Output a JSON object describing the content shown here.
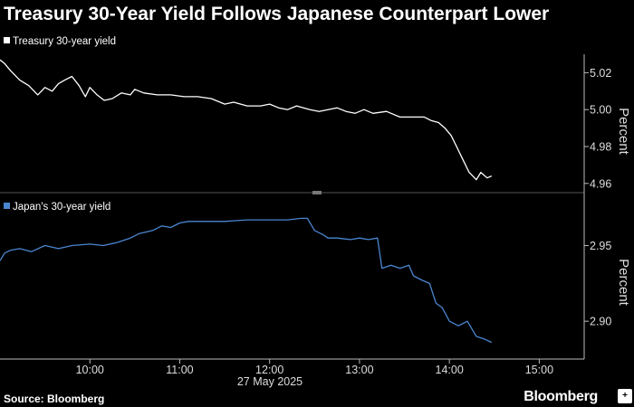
{
  "header": {
    "title": "Treasury 30-Year Yield Follows Japanese Counterpart Lower"
  },
  "footer": {
    "source": "Source: Bloomberg",
    "brand": "Bloomberg",
    "brand_icon": "bloomberg-plus-icon"
  },
  "colors": {
    "background": "#000000",
    "series1": "#ffffff",
    "series2": "#4a86d0",
    "axis": "#bbbbbb"
  },
  "chart_data": [
    {
      "type": "line",
      "ylabel": "Percent",
      "ylim": [
        4.955,
        5.03
      ],
      "yticks": [
        4.96,
        4.98,
        5.0,
        5.02
      ],
      "ytick_labels": [
        "4.96",
        "4.98",
        "5.00",
        "5.02"
      ],
      "legend": "top-left",
      "grid": false,
      "series": [
        {
          "name": "Treasury 30-year yield",
          "x": [
            9.0,
            9.05,
            9.12,
            9.22,
            9.32,
            9.42,
            9.5,
            9.58,
            9.65,
            9.72,
            9.8,
            9.88,
            9.95,
            10.0,
            10.08,
            10.16,
            10.25,
            10.35,
            10.45,
            10.5,
            10.6,
            10.75,
            10.9,
            11.05,
            11.2,
            11.35,
            11.5,
            11.6,
            11.75,
            11.9,
            12.0,
            12.1,
            12.2,
            12.3,
            12.45,
            12.55,
            12.65,
            12.75,
            12.85,
            12.95,
            13.05,
            13.15,
            13.3,
            13.45,
            13.55,
            13.65,
            13.72,
            13.8,
            13.88,
            13.95,
            14.02,
            14.08,
            14.15,
            14.22,
            14.3,
            14.35,
            14.42,
            14.47
          ],
          "values": [
            5.027,
            5.025,
            5.021,
            5.016,
            5.013,
            5.008,
            5.012,
            5.01,
            5.014,
            5.016,
            5.018,
            5.013,
            5.007,
            5.012,
            5.008,
            5.005,
            5.006,
            5.009,
            5.008,
            5.011,
            5.009,
            5.008,
            5.008,
            5.007,
            5.007,
            5.006,
            5.003,
            5.004,
            5.002,
            5.002,
            5.003,
            5.001,
            5.0,
            5.002,
            5.0,
            4.999,
            5.0,
            5.001,
            4.999,
            4.998,
            5.0,
            4.998,
            4.999,
            4.996,
            4.996,
            4.996,
            4.996,
            4.994,
            4.993,
            4.99,
            4.986,
            4.98,
            4.973,
            4.966,
            4.962,
            4.966,
            4.963,
            4.964
          ]
        }
      ]
    },
    {
      "type": "line",
      "xlabel": "27 May 2025",
      "ylabel": "Percent",
      "ylim": [
        2.875,
        2.985
      ],
      "yticks": [
        2.9,
        2.95
      ],
      "ytick_labels": [
        "2.90",
        "2.95"
      ],
      "xticks": [
        10,
        11,
        12,
        13,
        14,
        15
      ],
      "xtick_labels": [
        "10:00",
        "11:00",
        "12:00",
        "13:00",
        "14:00",
        "15:00"
      ],
      "xlim": [
        9.0,
        15.5
      ],
      "legend": "top-left",
      "grid": false,
      "series": [
        {
          "name": "Japan's 30-year yield",
          "x": [
            9.0,
            9.05,
            9.12,
            9.22,
            9.35,
            9.5,
            9.65,
            9.8,
            10.0,
            10.15,
            10.3,
            10.45,
            10.55,
            10.7,
            10.8,
            10.9,
            11.0,
            11.1,
            11.3,
            11.5,
            11.75,
            12.0,
            12.2,
            12.35,
            12.42,
            12.5,
            12.6,
            12.65,
            12.75,
            12.9,
            13.0,
            13.1,
            13.2,
            13.25,
            13.35,
            13.45,
            13.55,
            13.6,
            13.7,
            13.78,
            13.85,
            13.92,
            14.0,
            14.1,
            14.2,
            14.3,
            14.4,
            14.47
          ],
          "values": [
            2.94,
            2.945,
            2.947,
            2.948,
            2.946,
            2.95,
            2.948,
            2.95,
            2.951,
            2.95,
            2.952,
            2.955,
            2.958,
            2.96,
            2.963,
            2.962,
            2.965,
            2.966,
            2.966,
            2.966,
            2.967,
            2.967,
            2.967,
            2.968,
            2.968,
            2.96,
            2.957,
            2.955,
            2.955,
            2.954,
            2.955,
            2.954,
            2.955,
            2.935,
            2.937,
            2.935,
            2.937,
            2.93,
            2.927,
            2.925,
            2.912,
            2.909,
            2.9,
            2.897,
            2.9,
            2.89,
            2.888,
            2.886
          ]
        }
      ]
    }
  ]
}
